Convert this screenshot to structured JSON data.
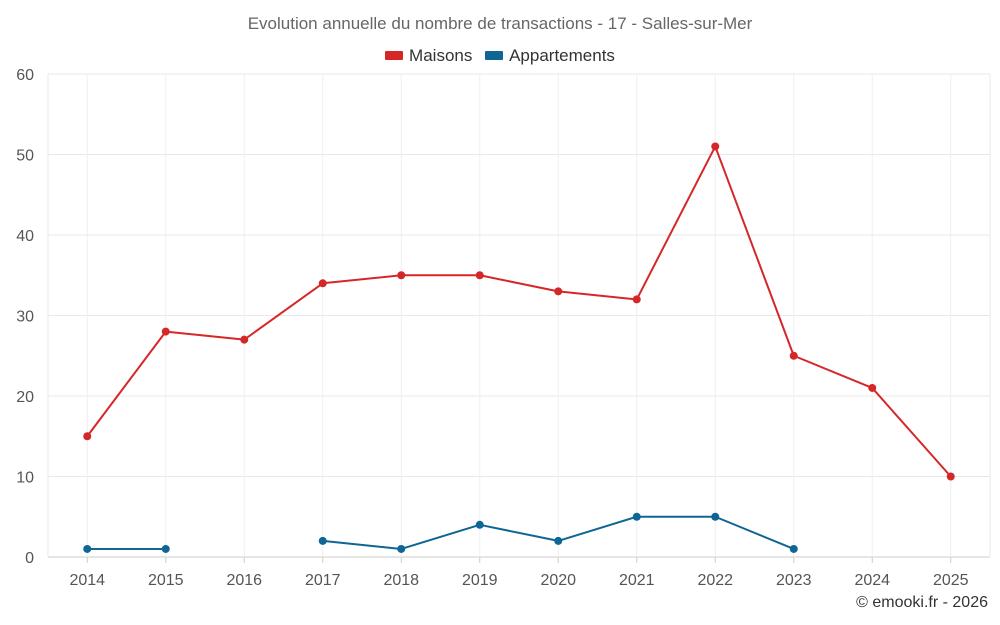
{
  "chart_data": {
    "type": "line",
    "title": "Evolution annuelle du nombre de transactions - 17 - Salles-sur-Mer",
    "categories": [
      "2014",
      "2015",
      "2016",
      "2017",
      "2018",
      "2019",
      "2020",
      "2021",
      "2022",
      "2023",
      "2024",
      "2025"
    ],
    "series": [
      {
        "name": "Maisons",
        "color": "#d62728",
        "values": [
          15,
          28,
          27,
          34,
          35,
          35,
          33,
          32,
          51,
          25,
          21,
          10
        ]
      },
      {
        "name": "Appartements",
        "color": "#0f6694",
        "values": [
          1,
          1,
          null,
          2,
          1,
          4,
          2,
          5,
          5,
          1,
          null,
          null
        ]
      }
    ],
    "ylim": [
      0,
      60
    ],
    "yticks": [
      0,
      10,
      20,
      30,
      40,
      50,
      60
    ],
    "xlabel": "",
    "ylabel": "",
    "grid": true,
    "legend": "top-center"
  },
  "credit": "© emooki.fr - 2026"
}
